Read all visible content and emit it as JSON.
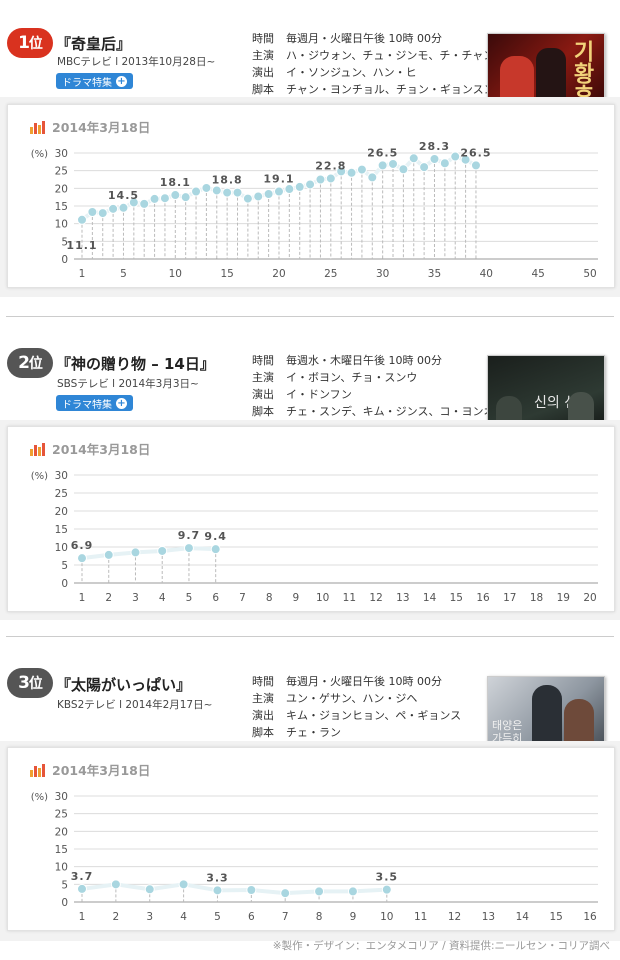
{
  "shows": [
    {
      "rank_num": "1",
      "rank_suffix": "位",
      "title": "『奇皇后』",
      "broadcast": "MBCテレビ l 2013年10月28日~",
      "has_button": true,
      "button_label": "ドラマ特集",
      "info": [
        {
          "k": "時間",
          "v": "毎週月・火曜日午後 10時 00分"
        },
        {
          "k": "主演",
          "v": "ハ・ジウォン、チュ・ジンモ、チ・チャンウク"
        },
        {
          "k": "演出",
          "v": "イ・ソンジュン、ハン・ヒ"
        },
        {
          "k": "脚本",
          "v": "チャン・ヨンチョル、チョン・ギョンスン"
        }
      ],
      "thumb_text": "기황후",
      "date_label": "2014年3月18日",
      "chart": {
        "type": "line",
        "ylabel": "(%)",
        "ylim": [
          0,
          30
        ],
        "yticks": [
          0,
          5,
          10,
          15,
          20,
          25,
          30
        ],
        "xmax": 50,
        "xticks": [
          1,
          5,
          10,
          15,
          20,
          25,
          30,
          35,
          40,
          45,
          50
        ],
        "values": [
          11.1,
          13.3,
          13.0,
          14.2,
          14.5,
          16.0,
          15.6,
          17.0,
          17.2,
          18.1,
          17.5,
          19.1,
          20.1,
          19.4,
          18.8,
          18.8,
          17.1,
          17.7,
          18.4,
          19.1,
          19.8,
          20.4,
          21.1,
          22.5,
          22.8,
          24.8,
          24.4,
          25.3,
          23.1,
          26.5,
          26.9,
          25.4,
          28.5,
          26.0,
          28.3,
          27.1,
          29.0,
          28.1,
          26.5
        ],
        "labels": [
          {
            "x": 1,
            "text": "11.1"
          },
          {
            "x": 5,
            "text": "14.5"
          },
          {
            "x": 10,
            "text": "18.1"
          },
          {
            "x": 15,
            "text": "18.8"
          },
          {
            "x": 20,
            "text": "19.1"
          },
          {
            "x": 25,
            "text": "22.8"
          },
          {
            "x": 30,
            "text": "26.5"
          },
          {
            "x": 35,
            "text": "28.3"
          },
          {
            "x": 39,
            "text": "26.5"
          }
        ]
      }
    },
    {
      "rank_num": "2",
      "rank_suffix": "位",
      "title": "『神の贈り物 – 14日』",
      "broadcast": "SBSテレビ l 2014年3月3日~",
      "has_button": true,
      "button_label": "ドラマ特集",
      "info": [
        {
          "k": "時間",
          "v": "毎週水・木曜日午後 10時 00分"
        },
        {
          "k": "主演",
          "v": "イ・ボヨン、チョ・スンウ"
        },
        {
          "k": "演出",
          "v": "イ・ドンフン"
        },
        {
          "k": "脚本",
          "v": "チェ・スンデ、キム・ジンス、コ・ヨンオ"
        }
      ],
      "thumb_text": "신의 선물",
      "date_label": "2014年3月18日",
      "chart": {
        "type": "line",
        "ylabel": "(%)",
        "ylim": [
          0,
          30
        ],
        "yticks": [
          0,
          5,
          10,
          15,
          20,
          25,
          30
        ],
        "xmax": 20,
        "xticks": [
          1,
          2,
          3,
          4,
          5,
          6,
          7,
          8,
          9,
          10,
          11,
          12,
          13,
          14,
          15,
          16,
          17,
          18,
          19,
          20
        ],
        "values": [
          6.9,
          7.8,
          8.5,
          8.9,
          9.7,
          9.4
        ],
        "labels": [
          {
            "x": 1,
            "text": "6.9"
          },
          {
            "x": 5,
            "text": "9.7"
          },
          {
            "x": 6,
            "text": "9.4"
          }
        ]
      }
    },
    {
      "rank_num": "3",
      "rank_suffix": "位",
      "title": "『太陽がいっぱい』",
      "broadcast": "KBS2テレビ l 2014年2月17日~",
      "has_button": false,
      "button_label": "",
      "info": [
        {
          "k": "時間",
          "v": "毎週月・火曜日午後 10時 00分"
        },
        {
          "k": "主演",
          "v": "ユン・ゲサン、ハン・ジヘ"
        },
        {
          "k": "演出",
          "v": "キム・ジョンヒョン、ペ・ギョンス"
        },
        {
          "k": "脚本",
          "v": "チェ・ラン"
        }
      ],
      "thumb_text": "태양은 가득히",
      "date_label": "2014年3月18日",
      "chart": {
        "type": "line",
        "ylabel": "(%)",
        "ylim": [
          0,
          30
        ],
        "yticks": [
          0,
          5,
          10,
          15,
          20,
          25,
          30
        ],
        "xmax": 16,
        "xticks": [
          1,
          2,
          3,
          4,
          5,
          6,
          7,
          8,
          9,
          10,
          11,
          12,
          13,
          14,
          15,
          16
        ],
        "values": [
          3.7,
          5.0,
          3.6,
          5.0,
          3.3,
          3.4,
          2.5,
          3.0,
          3.0,
          3.5
        ],
        "labels": [
          {
            "x": 1,
            "text": "3.7"
          },
          {
            "x": 5,
            "text": "3.3"
          },
          {
            "x": 10,
            "text": "3.5"
          }
        ]
      }
    }
  ],
  "footer": "※製作・デザイン：エンタメコリア / 資料提供:ニールセン・コリア調べ",
  "colors": {
    "rank1": "#d9321f",
    "rank_other": "#555555",
    "point": "#a9d6e0",
    "line": "#e6f2f5",
    "button": "#2f86d6"
  }
}
